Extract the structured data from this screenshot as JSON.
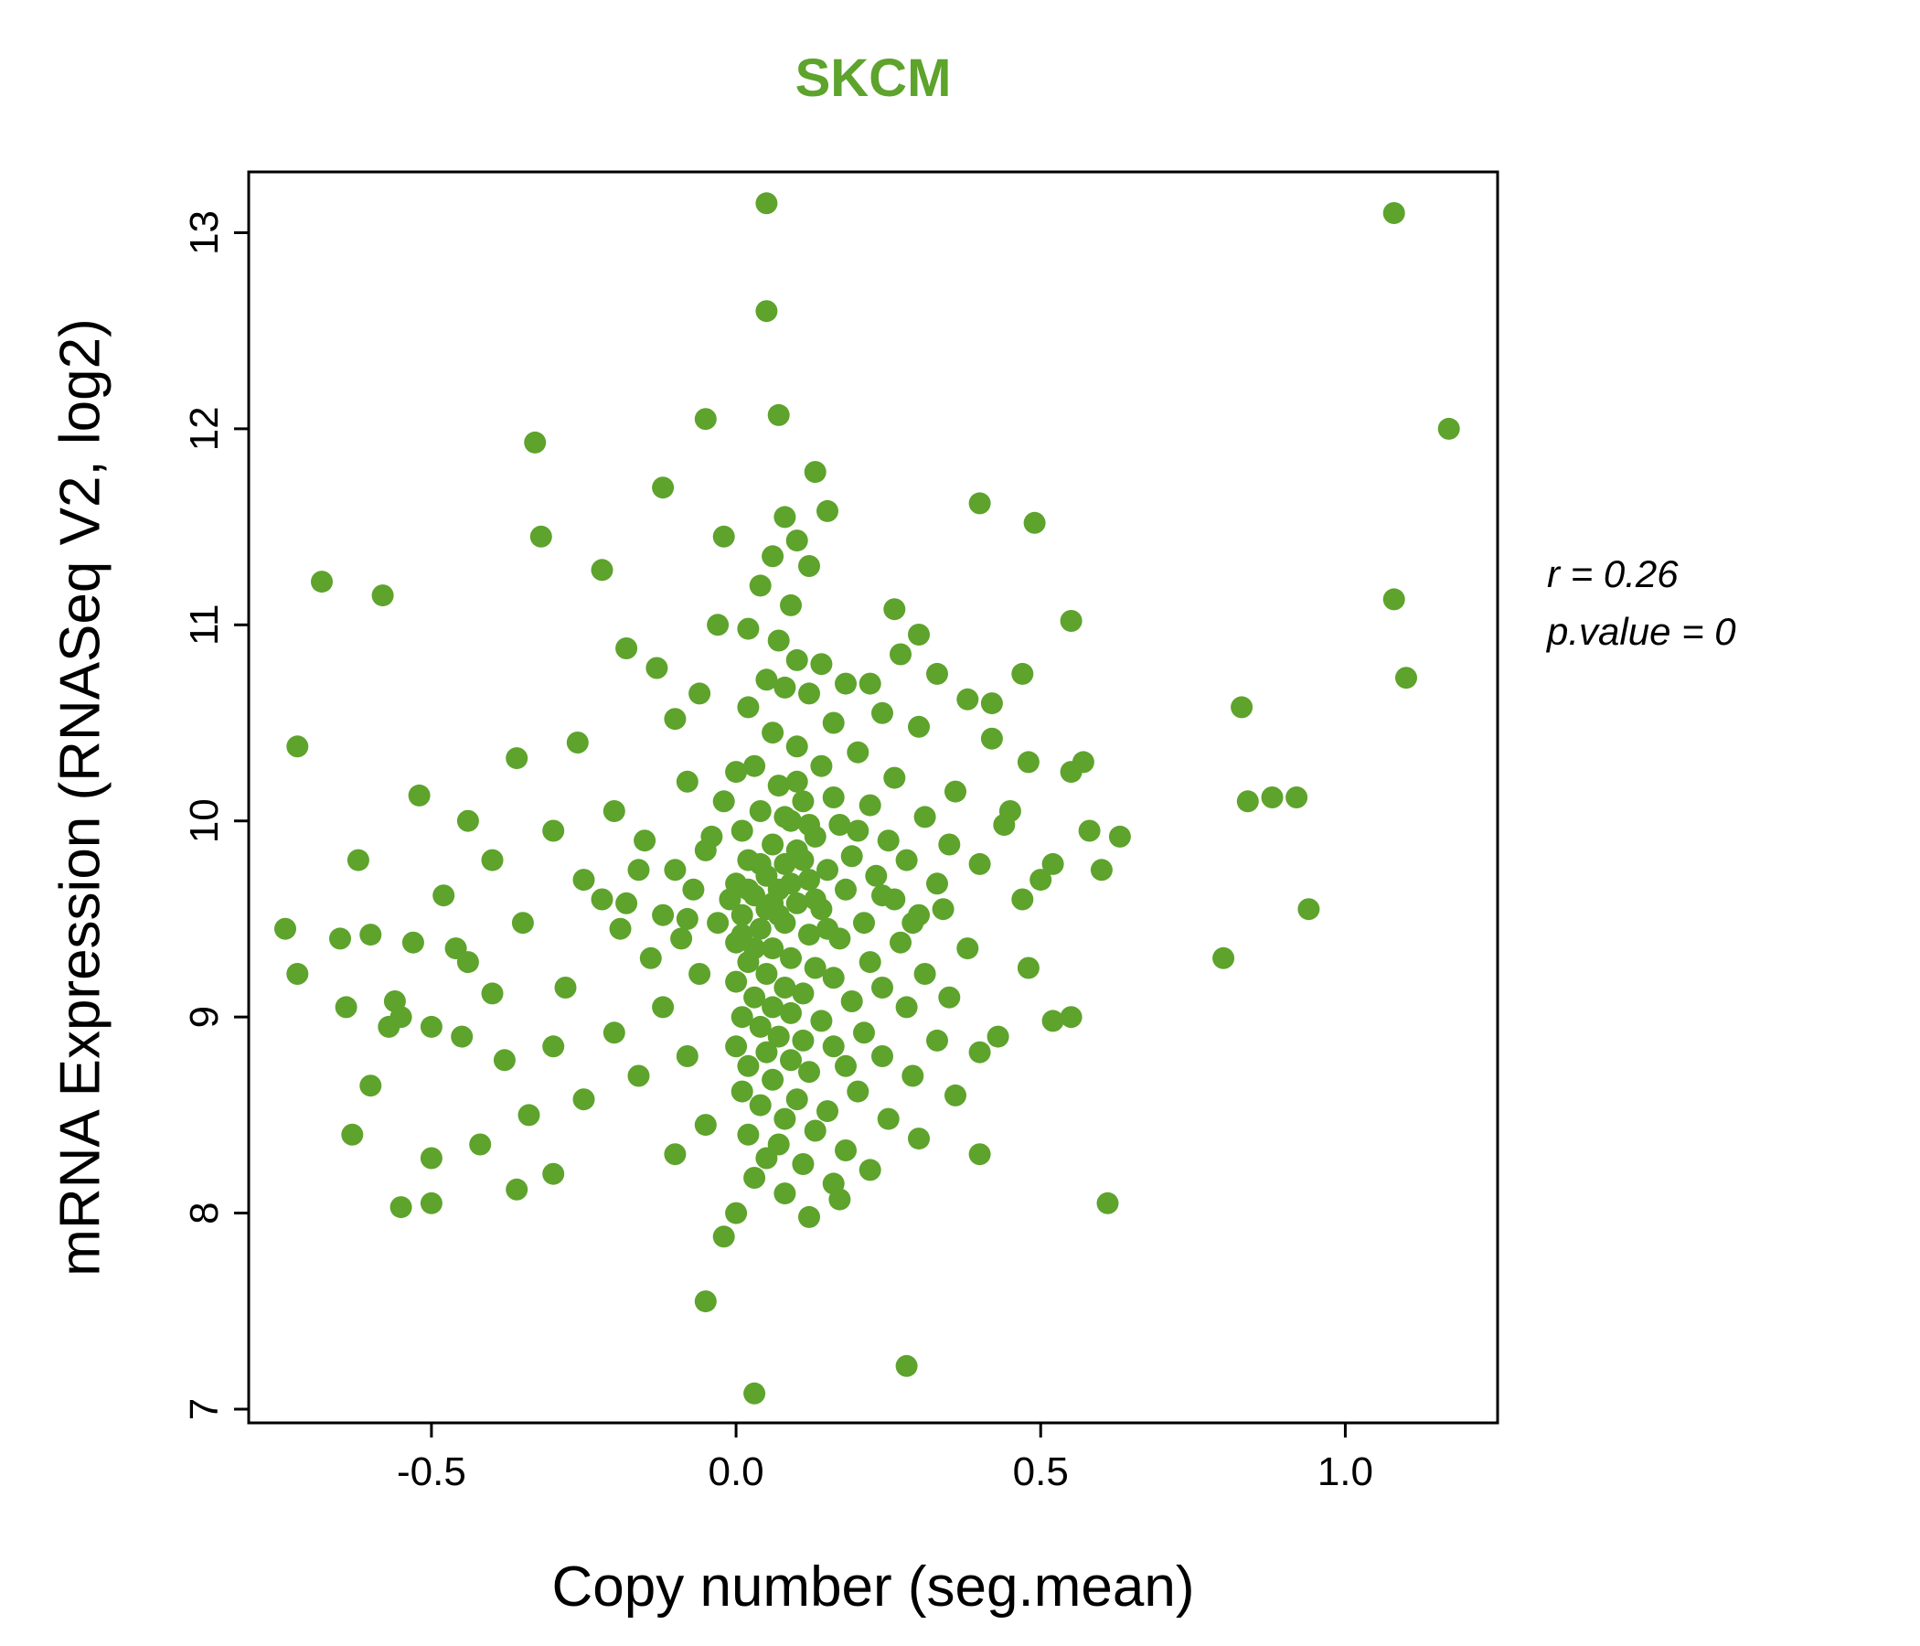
{
  "title": "SKCM",
  "annotation": {
    "line1": "r = 0.26",
    "line2": "p.value = 0"
  },
  "chart_data": {
    "type": "scatter",
    "title": "SKCM",
    "xlabel": "Copy number (seg.mean)",
    "ylabel": "mRNA Expression (RNASeq V2, log2)",
    "xlim": [
      -0.8,
      1.25
    ],
    "ylim": [
      6.93,
      13.31
    ],
    "x_ticks": [
      {
        "v": -0.5,
        "label": "-0.5"
      },
      {
        "v": 0.0,
        "label": "0.0"
      },
      {
        "v": 0.5,
        "label": "0.5"
      },
      {
        "v": 1.0,
        "label": "1.0"
      }
    ],
    "y_ticks": [
      {
        "v": 7,
        "label": "7"
      },
      {
        "v": 8,
        "label": "8"
      },
      {
        "v": 9,
        "label": "9"
      },
      {
        "v": 10,
        "label": "10"
      },
      {
        "v": 11,
        "label": "11"
      },
      {
        "v": 12,
        "label": "12"
      },
      {
        "v": 13,
        "label": "13"
      }
    ],
    "grid": false,
    "legend": "none",
    "point_color": "#5da32c",
    "title_color": "#5da32c",
    "annotation_lines": [
      "r = 0.26",
      "p.value = 0"
    ],
    "points": [
      [
        0.05,
        13.15
      ],
      [
        1.08,
        13.1
      ],
      [
        0.05,
        12.6
      ],
      [
        0.07,
        12.07
      ],
      [
        -0.05,
        12.05
      ],
      [
        1.17,
        12.0
      ],
      [
        -0.33,
        11.93
      ],
      [
        0.13,
        11.78
      ],
      [
        -0.12,
        11.7
      ],
      [
        0.4,
        11.62
      ],
      [
        0.15,
        11.58
      ],
      [
        0.08,
        11.55
      ],
      [
        0.49,
        11.52
      ],
      [
        -0.32,
        11.45
      ],
      [
        -0.02,
        11.45
      ],
      [
        0.1,
        11.43
      ],
      [
        0.06,
        11.35
      ],
      [
        0.12,
        11.3
      ],
      [
        -0.22,
        11.28
      ],
      [
        -0.68,
        11.22
      ],
      [
        0.04,
        11.2
      ],
      [
        -0.58,
        11.15
      ],
      [
        1.08,
        11.13
      ],
      [
        0.09,
        11.1
      ],
      [
        0.26,
        11.08
      ],
      [
        0.55,
        11.02
      ],
      [
        -0.03,
        11.0
      ],
      [
        0.02,
        10.98
      ],
      [
        0.3,
        10.95
      ],
      [
        0.07,
        10.92
      ],
      [
        -0.18,
        10.88
      ],
      [
        0.27,
        10.85
      ],
      [
        0.1,
        10.82
      ],
      [
        0.14,
        10.8
      ],
      [
        -0.13,
        10.78
      ],
      [
        0.33,
        10.75
      ],
      [
        1.1,
        10.73
      ],
      [
        0.47,
        10.75
      ],
      [
        0.05,
        10.72
      ],
      [
        0.18,
        10.7
      ],
      [
        0.22,
        10.7
      ],
      [
        0.08,
        10.68
      ],
      [
        -0.06,
        10.65
      ],
      [
        0.12,
        10.65
      ],
      [
        0.38,
        10.62
      ],
      [
        0.42,
        10.6
      ],
      [
        0.83,
        10.58
      ],
      [
        0.02,
        10.58
      ],
      [
        0.24,
        10.55
      ],
      [
        -0.1,
        10.52
      ],
      [
        0.16,
        10.5
      ],
      [
        0.3,
        10.48
      ],
      [
        0.06,
        10.45
      ],
      [
        0.42,
        10.42
      ],
      [
        -0.26,
        10.4
      ],
      [
        -0.72,
        10.38
      ],
      [
        0.1,
        10.38
      ],
      [
        0.2,
        10.35
      ],
      [
        -0.36,
        10.32
      ],
      [
        0.48,
        10.3
      ],
      [
        0.57,
        10.3
      ],
      [
        0.03,
        10.28
      ],
      [
        0.14,
        10.28
      ],
      [
        0.55,
        10.25
      ],
      [
        0.26,
        10.22
      ],
      [
        -0.08,
        10.2
      ],
      [
        0.07,
        10.18
      ],
      [
        0.36,
        10.15
      ],
      [
        -0.52,
        10.13
      ],
      [
        0.88,
        10.12
      ],
      [
        0.92,
        10.12
      ],
      [
        0.84,
        10.1
      ],
      [
        0.11,
        10.1
      ],
      [
        0.22,
        10.08
      ],
      [
        -0.2,
        10.05
      ],
      [
        0.04,
        10.05
      ],
      [
        0.45,
        10.05
      ],
      [
        0.31,
        10.02
      ],
      [
        -0.44,
        10.0
      ],
      [
        0.09,
        10.0
      ],
      [
        0.17,
        9.98
      ],
      [
        0.44,
        9.98
      ],
      [
        -0.3,
        9.95
      ],
      [
        0.01,
        9.95
      ],
      [
        0.58,
        9.95
      ],
      [
        0.13,
        9.92
      ],
      [
        0.63,
        9.92
      ],
      [
        0.25,
        9.9
      ],
      [
        -0.15,
        9.9
      ],
      [
        0.06,
        9.88
      ],
      [
        0.35,
        9.88
      ],
      [
        -0.04,
        9.92
      ],
      [
        0.08,
        10.02
      ],
      [
        -0.02,
        10.1
      ],
      [
        0.0,
        10.25
      ],
      [
        0.16,
        10.12
      ],
      [
        0.1,
        9.85
      ],
      [
        -0.05,
        9.85
      ],
      [
        0.19,
        9.82
      ],
      [
        0.02,
        9.8
      ],
      [
        0.28,
        9.8
      ],
      [
        -0.4,
        9.8
      ],
      [
        -0.62,
        9.8
      ],
      [
        0.08,
        9.78
      ],
      [
        0.4,
        9.78
      ],
      [
        0.52,
        9.78
      ],
      [
        0.15,
        9.75
      ],
      [
        -0.1,
        9.75
      ],
      [
        0.6,
        9.75
      ],
      [
        0.05,
        9.72
      ],
      [
        0.23,
        9.72
      ],
      [
        0.12,
        9.7
      ],
      [
        -0.25,
        9.7
      ],
      [
        0.5,
        9.7
      ],
      [
        0.0,
        9.68
      ],
      [
        0.33,
        9.68
      ],
      [
        0.07,
        9.65
      ],
      [
        0.18,
        9.65
      ],
      [
        -0.48,
        9.62
      ],
      [
        0.03,
        9.62
      ],
      [
        0.26,
        9.6
      ],
      [
        0.47,
        9.6
      ],
      [
        0.1,
        9.58
      ],
      [
        -0.18,
        9.58
      ],
      [
        0.05,
        9.55
      ],
      [
        0.14,
        9.55
      ],
      [
        0.94,
        9.55
      ],
      [
        0.01,
        9.52
      ],
      [
        0.3,
        9.52
      ],
      [
        -0.08,
        9.5
      ],
      [
        0.04,
        9.78
      ],
      [
        0.11,
        9.8
      ],
      [
        0.2,
        9.95
      ],
      [
        0.12,
        9.98
      ],
      [
        0.1,
        10.2
      ],
      [
        -0.01,
        9.6
      ],
      [
        0.02,
        9.65
      ],
      [
        0.06,
        9.58
      ],
      [
        0.09,
        9.68
      ],
      [
        0.13,
        9.6
      ],
      [
        -0.07,
        9.65
      ],
      [
        -0.16,
        9.75
      ],
      [
        -0.22,
        9.6
      ],
      [
        0.24,
        9.62
      ],
      [
        0.34,
        9.55
      ],
      [
        0.08,
        9.48
      ],
      [
        0.21,
        9.48
      ],
      [
        -0.35,
        9.48
      ],
      [
        -0.74,
        9.45
      ],
      [
        0.04,
        9.45
      ],
      [
        0.12,
        9.42
      ],
      [
        -0.6,
        9.42
      ],
      [
        -0.65,
        9.4
      ],
      [
        0.17,
        9.4
      ],
      [
        0.0,
        9.38
      ],
      [
        0.27,
        9.38
      ],
      [
        -0.46,
        9.35
      ],
      [
        0.06,
        9.35
      ],
      [
        0.38,
        9.35
      ],
      [
        0.09,
        9.3
      ],
      [
        -0.14,
        9.3
      ],
      [
        0.8,
        9.3
      ],
      [
        0.02,
        9.28
      ],
      [
        -0.44,
        9.28
      ],
      [
        0.22,
        9.28
      ],
      [
        0.13,
        9.25
      ],
      [
        -0.72,
        9.22
      ],
      [
        0.05,
        9.22
      ],
      [
        -0.06,
        9.22
      ],
      [
        0.31,
        9.22
      ],
      [
        0.48,
        9.25
      ],
      [
        0.16,
        9.2
      ],
      [
        0.0,
        9.18
      ],
      [
        0.08,
        9.15
      ],
      [
        -0.28,
        9.15
      ],
      [
        0.24,
        9.15
      ],
      [
        0.35,
        9.1
      ],
      [
        0.11,
        9.12
      ],
      [
        -0.4,
        9.12
      ],
      [
        0.01,
        9.42
      ],
      [
        0.03,
        9.35
      ],
      [
        -0.03,
        9.48
      ],
      [
        0.07,
        9.52
      ],
      [
        -0.09,
        9.4
      ],
      [
        -0.12,
        9.52
      ],
      [
        -0.19,
        9.45
      ],
      [
        0.29,
        9.48
      ],
      [
        -0.53,
        9.38
      ],
      [
        0.15,
        9.45
      ],
      [
        0.03,
        9.1
      ],
      [
        0.19,
        9.08
      ],
      [
        -0.56,
        9.08
      ],
      [
        0.06,
        9.05
      ],
      [
        -0.12,
        9.05
      ],
      [
        0.28,
        9.05
      ],
      [
        -0.64,
        9.05
      ],
      [
        0.09,
        9.02
      ],
      [
        0.55,
        9.0
      ],
      [
        -0.55,
        9.0
      ],
      [
        0.01,
        9.0
      ],
      [
        0.14,
        8.98
      ],
      [
        0.52,
        8.98
      ],
      [
        -0.5,
        8.95
      ],
      [
        0.04,
        8.95
      ],
      [
        -0.57,
        8.95
      ],
      [
        0.21,
        8.92
      ],
      [
        -0.2,
        8.92
      ],
      [
        0.43,
        8.9
      ],
      [
        0.07,
        8.9
      ],
      [
        -0.45,
        8.9
      ],
      [
        0.11,
        8.88
      ],
      [
        0.33,
        8.88
      ],
      [
        0.0,
        8.85
      ],
      [
        0.16,
        8.85
      ],
      [
        -0.3,
        8.85
      ],
      [
        0.05,
        8.82
      ],
      [
        0.4,
        8.82
      ],
      [
        0.24,
        8.8
      ],
      [
        -0.08,
        8.8
      ],
      [
        0.09,
        8.78
      ],
      [
        -0.38,
        8.78
      ],
      [
        0.02,
        8.75
      ],
      [
        0.18,
        8.75
      ],
      [
        0.12,
        8.72
      ],
      [
        -0.16,
        8.7
      ],
      [
        0.29,
        8.7
      ],
      [
        0.06,
        8.68
      ],
      [
        -0.6,
        8.65
      ],
      [
        0.01,
        8.62
      ],
      [
        0.2,
        8.62
      ],
      [
        0.36,
        8.6
      ],
      [
        0.1,
        8.58
      ],
      [
        -0.25,
        8.58
      ],
      [
        0.04,
        8.55
      ],
      [
        0.15,
        8.52
      ],
      [
        -0.34,
        8.5
      ],
      [
        0.08,
        8.48
      ],
      [
        0.25,
        8.48
      ],
      [
        -0.05,
        8.45
      ],
      [
        0.13,
        8.42
      ],
      [
        -0.63,
        8.4
      ],
      [
        0.02,
        8.4
      ],
      [
        0.3,
        8.38
      ],
      [
        -0.42,
        8.35
      ],
      [
        0.07,
        8.35
      ],
      [
        0.18,
        8.32
      ],
      [
        0.4,
        8.3
      ],
      [
        -0.1,
        8.3
      ],
      [
        0.05,
        8.28
      ],
      [
        -0.5,
        8.28
      ],
      [
        0.11,
        8.25
      ],
      [
        0.22,
        8.22
      ],
      [
        -0.3,
        8.2
      ],
      [
        0.03,
        8.18
      ],
      [
        0.16,
        8.15
      ],
      [
        -0.36,
        8.12
      ],
      [
        0.08,
        8.1
      ],
      [
        0.17,
        8.07
      ],
      [
        0.61,
        8.05
      ],
      [
        -0.5,
        8.05
      ],
      [
        -0.55,
        8.03
      ],
      [
        0.0,
        8.0
      ],
      [
        0.12,
        7.98
      ],
      [
        -0.02,
        7.88
      ],
      [
        -0.05,
        7.55
      ],
      [
        0.28,
        7.22
      ],
      [
        0.03,
        7.08
      ]
    ]
  }
}
